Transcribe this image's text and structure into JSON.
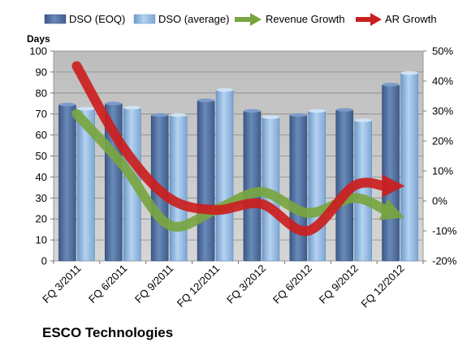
{
  "chart_data": {
    "type": "bar",
    "title": "",
    "company": "ESCO Technologies",
    "y_left_title": "Days",
    "categories": [
      "FQ 3/2011",
      "FQ 6/2011",
      "FQ 9/2011",
      "FQ 12/2011",
      "FQ 3/2012",
      "FQ 6/2012",
      "FQ 9/2012",
      "FQ 12/2012"
    ],
    "series": [
      {
        "name": "DSO (EOQ)",
        "type": "bar",
        "axis": "left",
        "values": [
          74.5,
          75,
          69.5,
          76.5,
          71.5,
          69.5,
          72,
          84
        ]
      },
      {
        "name": "DSO (average)",
        "type": "bar",
        "axis": "left",
        "values": [
          72.5,
          73,
          69.5,
          81.5,
          68.5,
          71.5,
          67,
          89.5
        ]
      },
      {
        "name": "Revenue Growth",
        "type": "line",
        "axis": "right",
        "values": [
          29,
          12,
          -8,
          -3,
          3,
          -4,
          1,
          -5
        ]
      },
      {
        "name": "AR Growth",
        "type": "line",
        "axis": "right",
        "values": [
          45,
          18,
          1,
          -3,
          -1,
          -10,
          5,
          5
        ]
      }
    ],
    "y_left": {
      "min": 0,
      "max": 100,
      "step": 10,
      "tick_labels": [
        "0",
        "10",
        "20",
        "30",
        "40",
        "50",
        "60",
        "70",
        "80",
        "90",
        "100"
      ]
    },
    "y_right": {
      "min": -20,
      "max": 50,
      "step": 10,
      "tick_labels": [
        "-20%",
        "-10%",
        "0%",
        "10%",
        "20%",
        "30%",
        "40%",
        "50%"
      ]
    },
    "grid": true,
    "legend_position": "top",
    "colors": {
      "dso_eoq": "#4f6fa0",
      "dso_avg": "#8fb6e0",
      "revenue_growth": "#78a540",
      "ar_growth": "#cc1e1e",
      "plot_background": "#c8c8c8"
    }
  }
}
